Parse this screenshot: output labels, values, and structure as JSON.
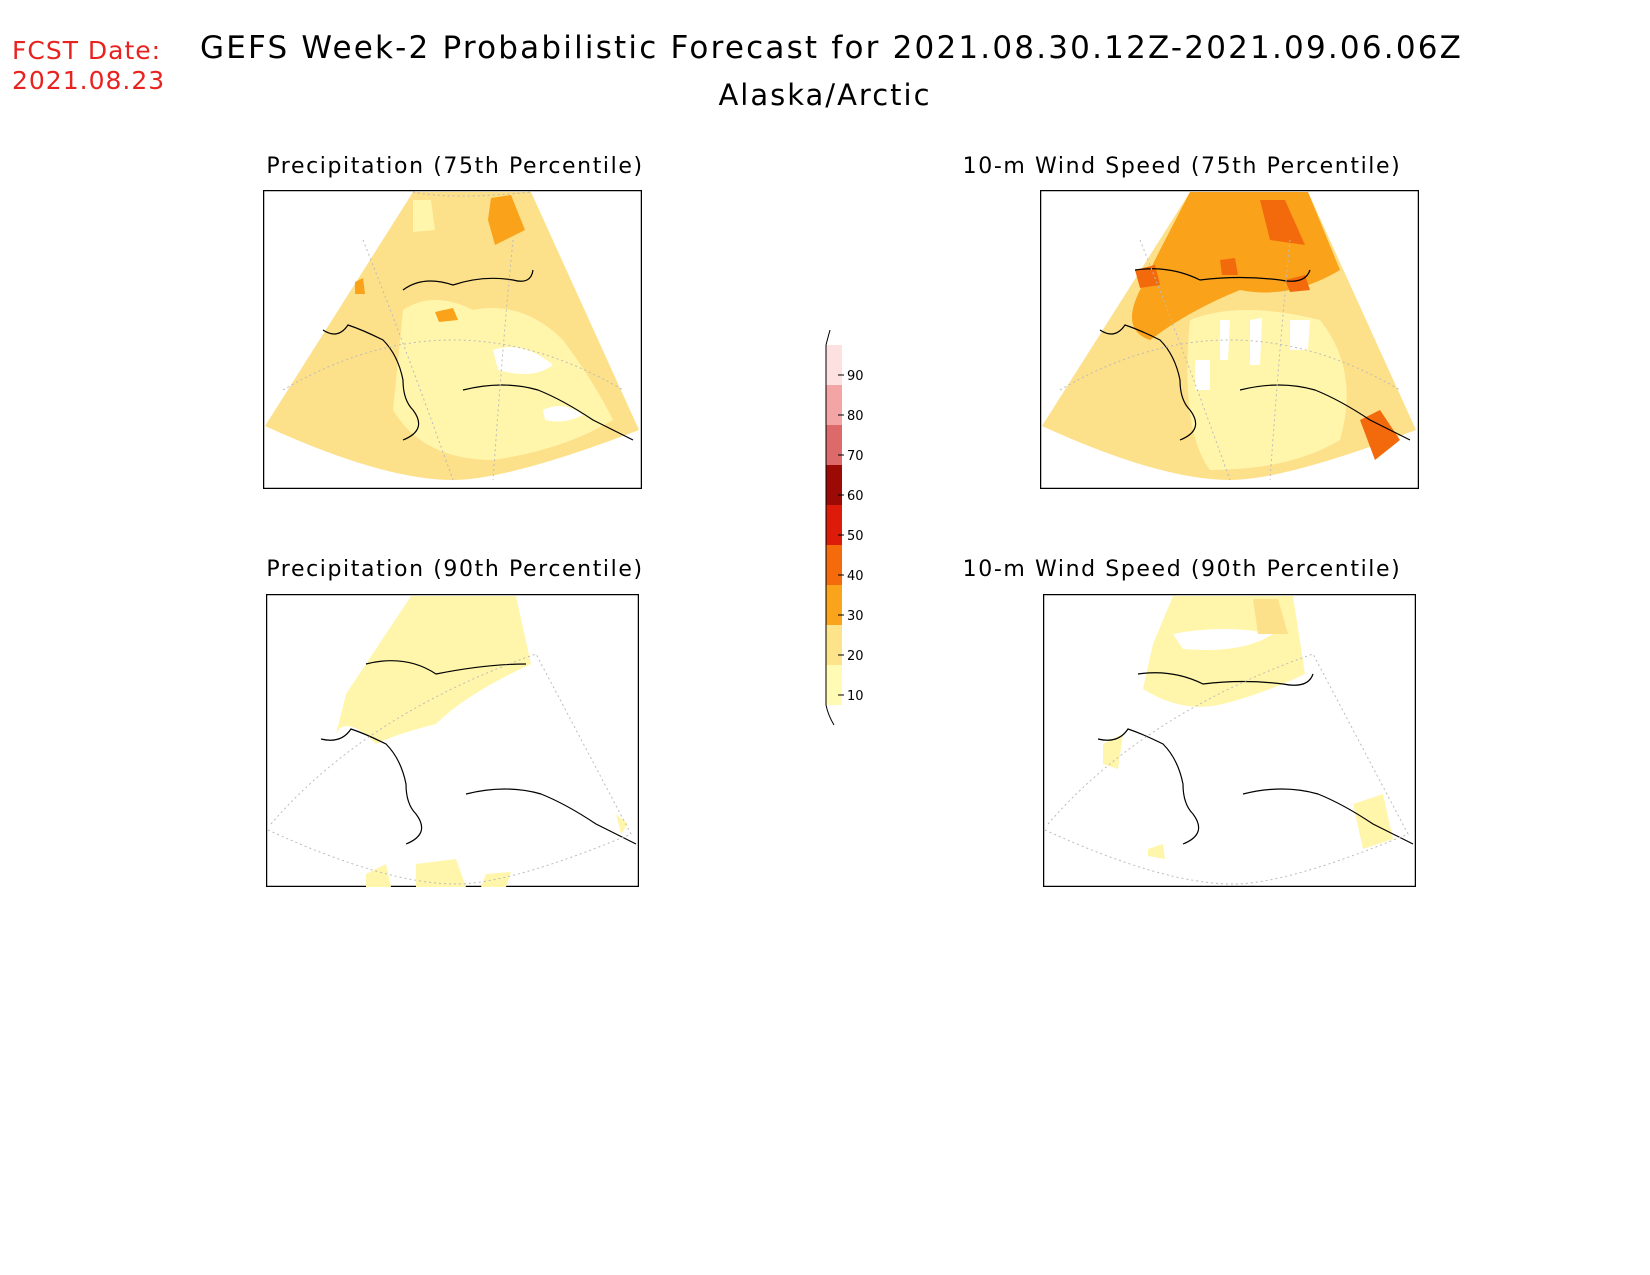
{
  "header": {
    "fcst_label": "FCST Date:",
    "fcst_date": "2021.08.23",
    "title": "GEFS Week-2 Probabilistic Forecast for 2021.08.30.12Z-2021.09.06.06Z",
    "subtitle": "Alaska/Arctic"
  },
  "panels": [
    {
      "id": "precip-75",
      "title": "Precipitation (75th Percentile)"
    },
    {
      "id": "wind-75",
      "title": "10-m Wind Speed (75th Percentile)"
    },
    {
      "id": "precip-90",
      "title": "Precipitation (90th Percentile)"
    },
    {
      "id": "wind-90",
      "title": "10-m Wind Speed (90th Percentile)"
    }
  ],
  "colorbar": {
    "levels": [
      "10",
      "20",
      "30",
      "40",
      "50",
      "60",
      "70",
      "80",
      "90"
    ],
    "colors": [
      "#fffbb4",
      "#fde38a",
      "#f9a41a",
      "#f56b0c",
      "#dd1b09",
      "#9b0a04",
      "#dd6a6a",
      "#f3a5a5",
      "#fde0e0"
    ]
  },
  "colors": {
    "level_10": "#fff6ac",
    "level_20": "#fde08a",
    "level_30": "#f9a21a",
    "level_40": "#f26a0c",
    "fcst_text": "#e8231f"
  }
}
